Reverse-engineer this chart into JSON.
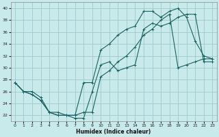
{
  "xlabel": "Humidex (Indice chaleur)",
  "bg_color": "#c8eaea",
  "grid_color": "#a0c8c8",
  "line_color": "#1a6060",
  "xlim": [
    -0.5,
    23.5
  ],
  "ylim": [
    21,
    41
  ],
  "xticks": [
    0,
    1,
    2,
    3,
    4,
    5,
    6,
    7,
    8,
    9,
    10,
    11,
    12,
    13,
    14,
    15,
    16,
    17,
    18,
    19,
    20,
    21,
    22,
    23
  ],
  "yticks": [
    22,
    24,
    26,
    28,
    30,
    32,
    34,
    36,
    38,
    40
  ],
  "line1_x": [
    0,
    1,
    2,
    3,
    4,
    5,
    6,
    7,
    8,
    9,
    10,
    11,
    12,
    13,
    14,
    15,
    16,
    17,
    18,
    19,
    20,
    21,
    22,
    23
  ],
  "line1_y": [
    27.5,
    26.0,
    26.0,
    25.0,
    22.5,
    22.5,
    22.0,
    21.5,
    21.5,
    26.0,
    30.5,
    31.0,
    29.5,
    30.0,
    30.5,
    36.5,
    37.5,
    37.0,
    37.5,
    38.5,
    39.0,
    39.0,
    31.0,
    31.0
  ],
  "line2_x": [
    0,
    1,
    2,
    3,
    4,
    5,
    6,
    7,
    8,
    9,
    10,
    11,
    12,
    13,
    14,
    15,
    16,
    17,
    18,
    19,
    20,
    21,
    22,
    23
  ],
  "line2_y": [
    27.5,
    26.0,
    25.5,
    24.5,
    22.5,
    22.0,
    22.0,
    22.0,
    27.5,
    27.5,
    33.0,
    34.0,
    35.5,
    36.5,
    37.0,
    39.5,
    39.5,
    38.5,
    39.5,
    40.0,
    38.5,
    34.5,
    32.0,
    31.5
  ],
  "line3_x": [
    0,
    1,
    2,
    3,
    4,
    5,
    6,
    7,
    8,
    9,
    10,
    11,
    12,
    13,
    14,
    15,
    16,
    17,
    18,
    19,
    20,
    21,
    22,
    23
  ],
  "line3_y": [
    27.5,
    26.0,
    25.5,
    24.5,
    22.5,
    22.0,
    22.0,
    22.0,
    22.5,
    22.5,
    28.5,
    29.5,
    31.0,
    32.0,
    33.5,
    35.5,
    36.5,
    38.0,
    39.0,
    30.0,
    30.5,
    31.0,
    31.5,
    31.5
  ]
}
